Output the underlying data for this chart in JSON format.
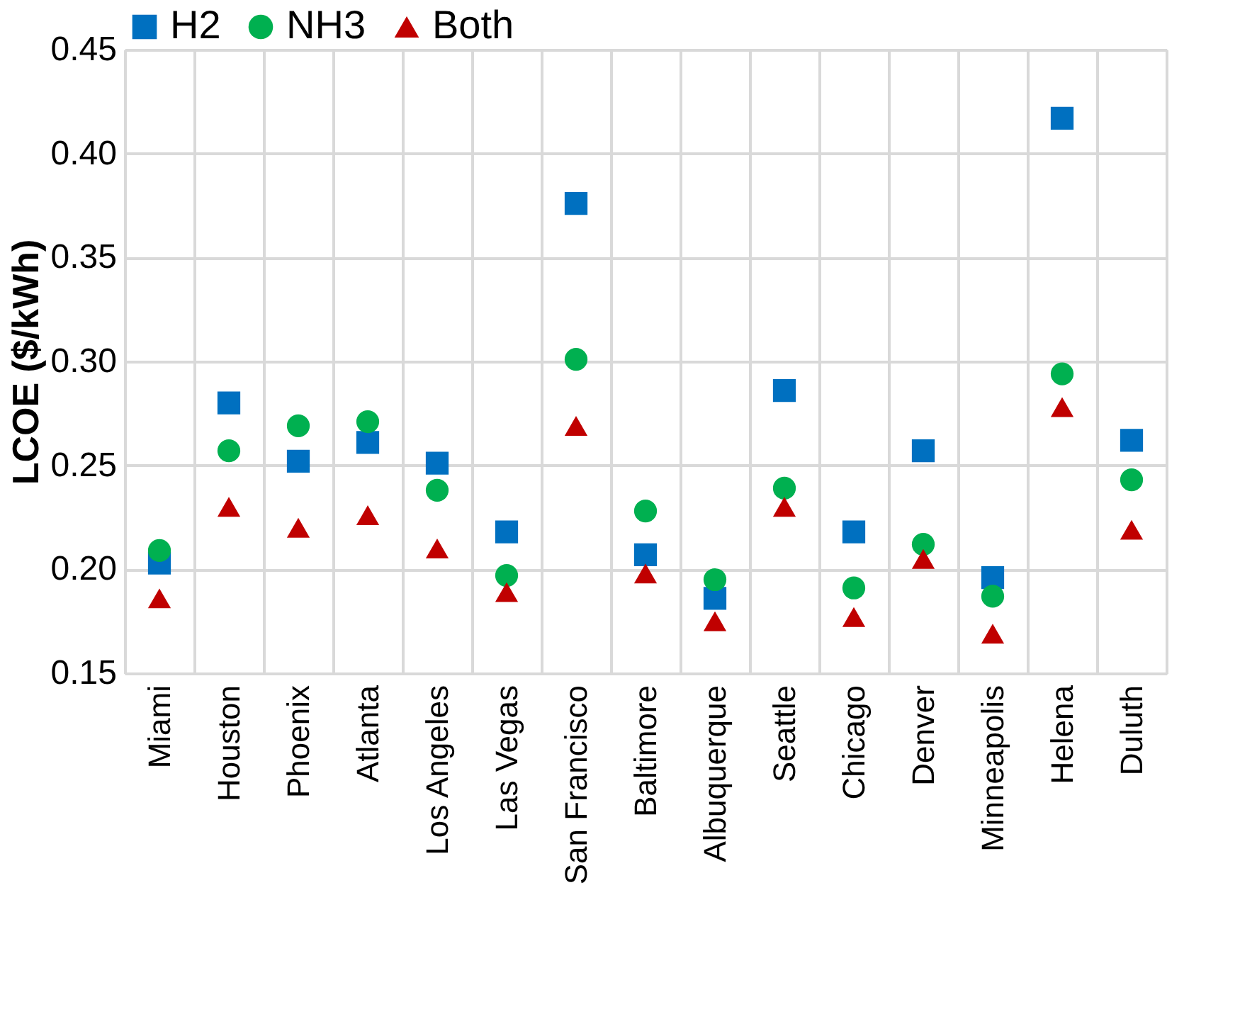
{
  "chart_data": {
    "type": "scatter",
    "ylabel": "LCOE ($/kWh)",
    "categories": [
      "Miami",
      "Houston",
      "Phoenix",
      "Atlanta",
      "Los Angeles",
      "Las Vegas",
      "San Francisco",
      "Baltimore",
      "Albuquerque",
      "Seattle",
      "Chicago",
      "Denver",
      "Minneapolis",
      "Helena",
      "Duluth"
    ],
    "series": [
      {
        "name": "H2",
        "color": "#0070c0",
        "marker": "square",
        "values": [
          0.203,
          0.28,
          0.252,
          0.261,
          0.251,
          0.218,
          0.376,
          0.207,
          0.186,
          0.286,
          0.218,
          0.257,
          0.196,
          0.417,
          0.262
        ]
      },
      {
        "name": "NH3",
        "color": "#00b050",
        "marker": "circle",
        "values": [
          0.209,
          0.257,
          0.269,
          0.271,
          0.238,
          0.197,
          0.301,
          0.228,
          0.195,
          0.239,
          0.191,
          0.212,
          0.187,
          0.294,
          0.243
        ]
      },
      {
        "name": "Both",
        "color": "#c00000",
        "marker": "triangle",
        "values": [
          0.186,
          0.23,
          0.22,
          0.226,
          0.21,
          0.189,
          0.269,
          0.198,
          0.175,
          0.23,
          0.177,
          0.205,
          0.169,
          0.278,
          0.219
        ]
      }
    ],
    "ylim": [
      0.15,
      0.45
    ],
    "yticks": [
      {
        "value": 0.15,
        "label": "0.15"
      },
      {
        "value": 0.2,
        "label": "0.20"
      },
      {
        "value": 0.25,
        "label": "0.25"
      },
      {
        "value": 0.3,
        "label": "0.30"
      },
      {
        "value": 0.35,
        "label": "0.35"
      },
      {
        "value": 0.4,
        "label": "0.40"
      },
      {
        "value": 0.45,
        "label": "0.45"
      }
    ],
    "grid": true,
    "legend": "top"
  }
}
